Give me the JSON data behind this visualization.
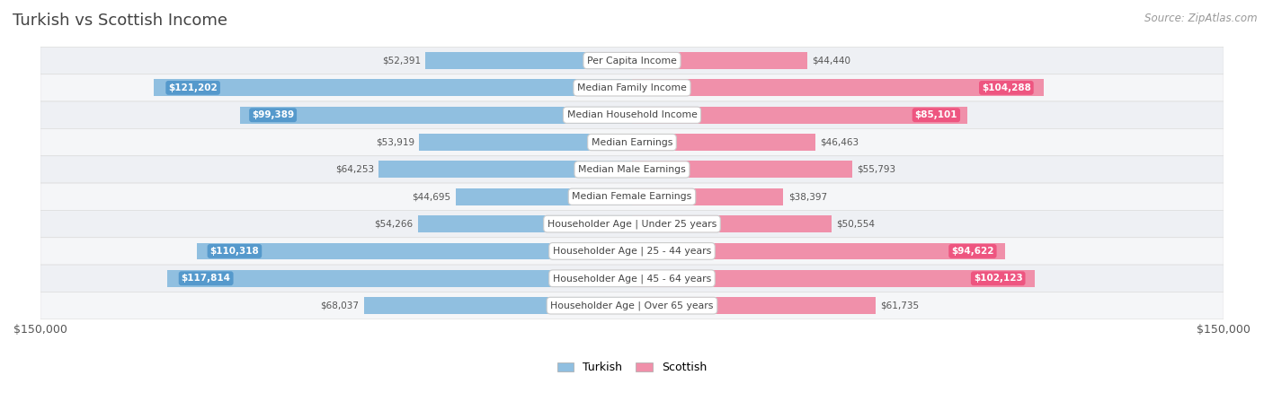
{
  "title": "Turkish vs Scottish Income",
  "source": "Source: ZipAtlas.com",
  "categories": [
    "Per Capita Income",
    "Median Family Income",
    "Median Household Income",
    "Median Earnings",
    "Median Male Earnings",
    "Median Female Earnings",
    "Householder Age | Under 25 years",
    "Householder Age | 25 - 44 years",
    "Householder Age | 45 - 64 years",
    "Householder Age | Over 65 years"
  ],
  "turkish_values": [
    52391,
    121202,
    99389,
    53919,
    64253,
    44695,
    54266,
    110318,
    117814,
    68037
  ],
  "scottish_values": [
    44440,
    104288,
    85101,
    46463,
    55793,
    38397,
    50554,
    94622,
    102123,
    61735
  ],
  "turkish_labels": [
    "$52,391",
    "$121,202",
    "$99,389",
    "$53,919",
    "$64,253",
    "$44,695",
    "$54,266",
    "$110,318",
    "$117,814",
    "$68,037"
  ],
  "scottish_labels": [
    "$44,440",
    "$104,288",
    "$85,101",
    "$46,463",
    "$55,793",
    "$38,397",
    "$50,554",
    "$94,622",
    "$102,123",
    "$61,735"
  ],
  "turkish_color": "#90BFE0",
  "turkish_badge_color": "#5599CC",
  "scottish_color": "#F090AA",
  "scottish_badge_color": "#EE5580",
  "max_value": 150000,
  "bar_height": 0.62,
  "title_color": "#444444",
  "source_color": "#999999",
  "legend_turkish": "Turkish",
  "legend_scottish": "Scottish",
  "turkish_badge_threshold": 90000,
  "scottish_badge_threshold": 80000
}
